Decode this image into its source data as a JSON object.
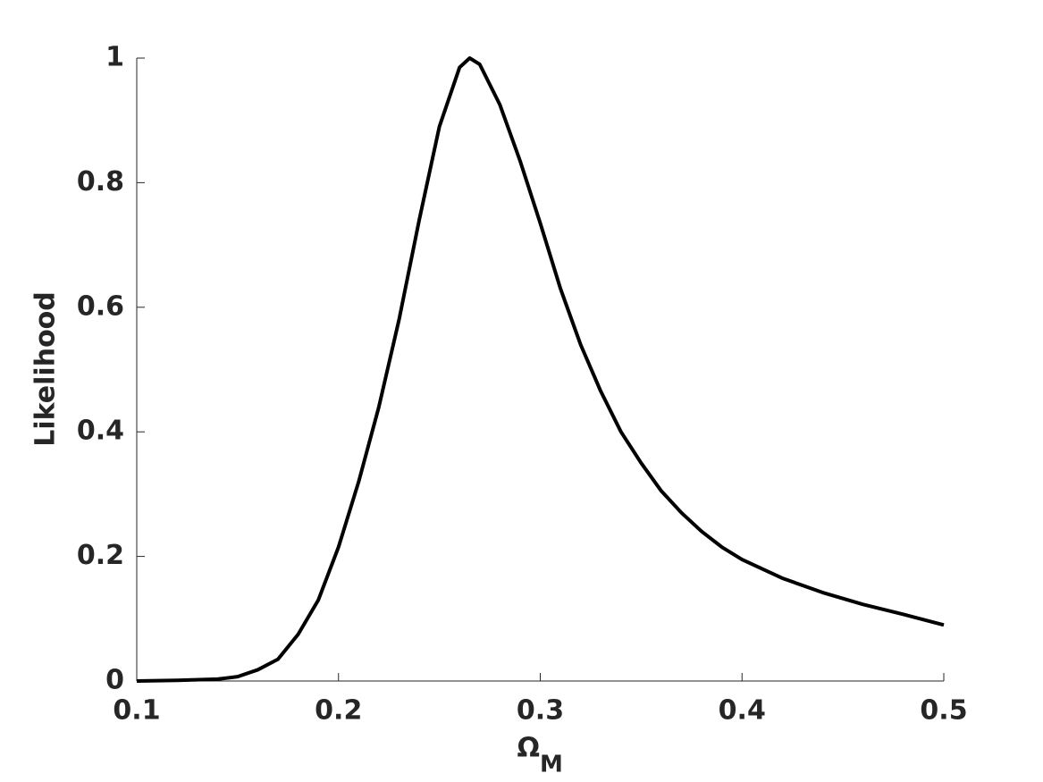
{
  "chart_data": {
    "type": "line",
    "xlabel": "Ω",
    "xlabel_subscript": "M",
    "ylabel": "Likelihood",
    "series": [
      {
        "color": "#000000",
        "x": [
          0.1,
          0.12,
          0.14,
          0.15,
          0.16,
          0.17,
          0.18,
          0.19,
          0.2,
          0.21,
          0.22,
          0.23,
          0.24,
          0.25,
          0.26,
          0.265,
          0.27,
          0.28,
          0.29,
          0.3,
          0.31,
          0.32,
          0.33,
          0.34,
          0.35,
          0.36,
          0.37,
          0.38,
          0.39,
          0.4,
          0.42,
          0.44,
          0.46,
          0.48,
          0.5
        ],
        "values": [
          0,
          0.001,
          0.003,
          0.007,
          0.018,
          0.035,
          0.075,
          0.13,
          0.215,
          0.32,
          0.44,
          0.58,
          0.74,
          0.89,
          0.985,
          1.0,
          0.99,
          0.925,
          0.835,
          0.735,
          0.63,
          0.54,
          0.465,
          0.4,
          0.35,
          0.305,
          0.27,
          0.24,
          0.215,
          0.195,
          0.165,
          0.142,
          0.123,
          0.107,
          0.09
        ]
      }
    ],
    "xlim": [
      0.1,
      0.5
    ],
    "xticks": [
      0.1,
      0.2,
      0.3,
      0.4,
      0.5
    ],
    "ylim": [
      0,
      1
    ],
    "yticks": [
      0,
      0.2,
      0.4,
      0.6,
      0.8,
      1
    ]
  }
}
